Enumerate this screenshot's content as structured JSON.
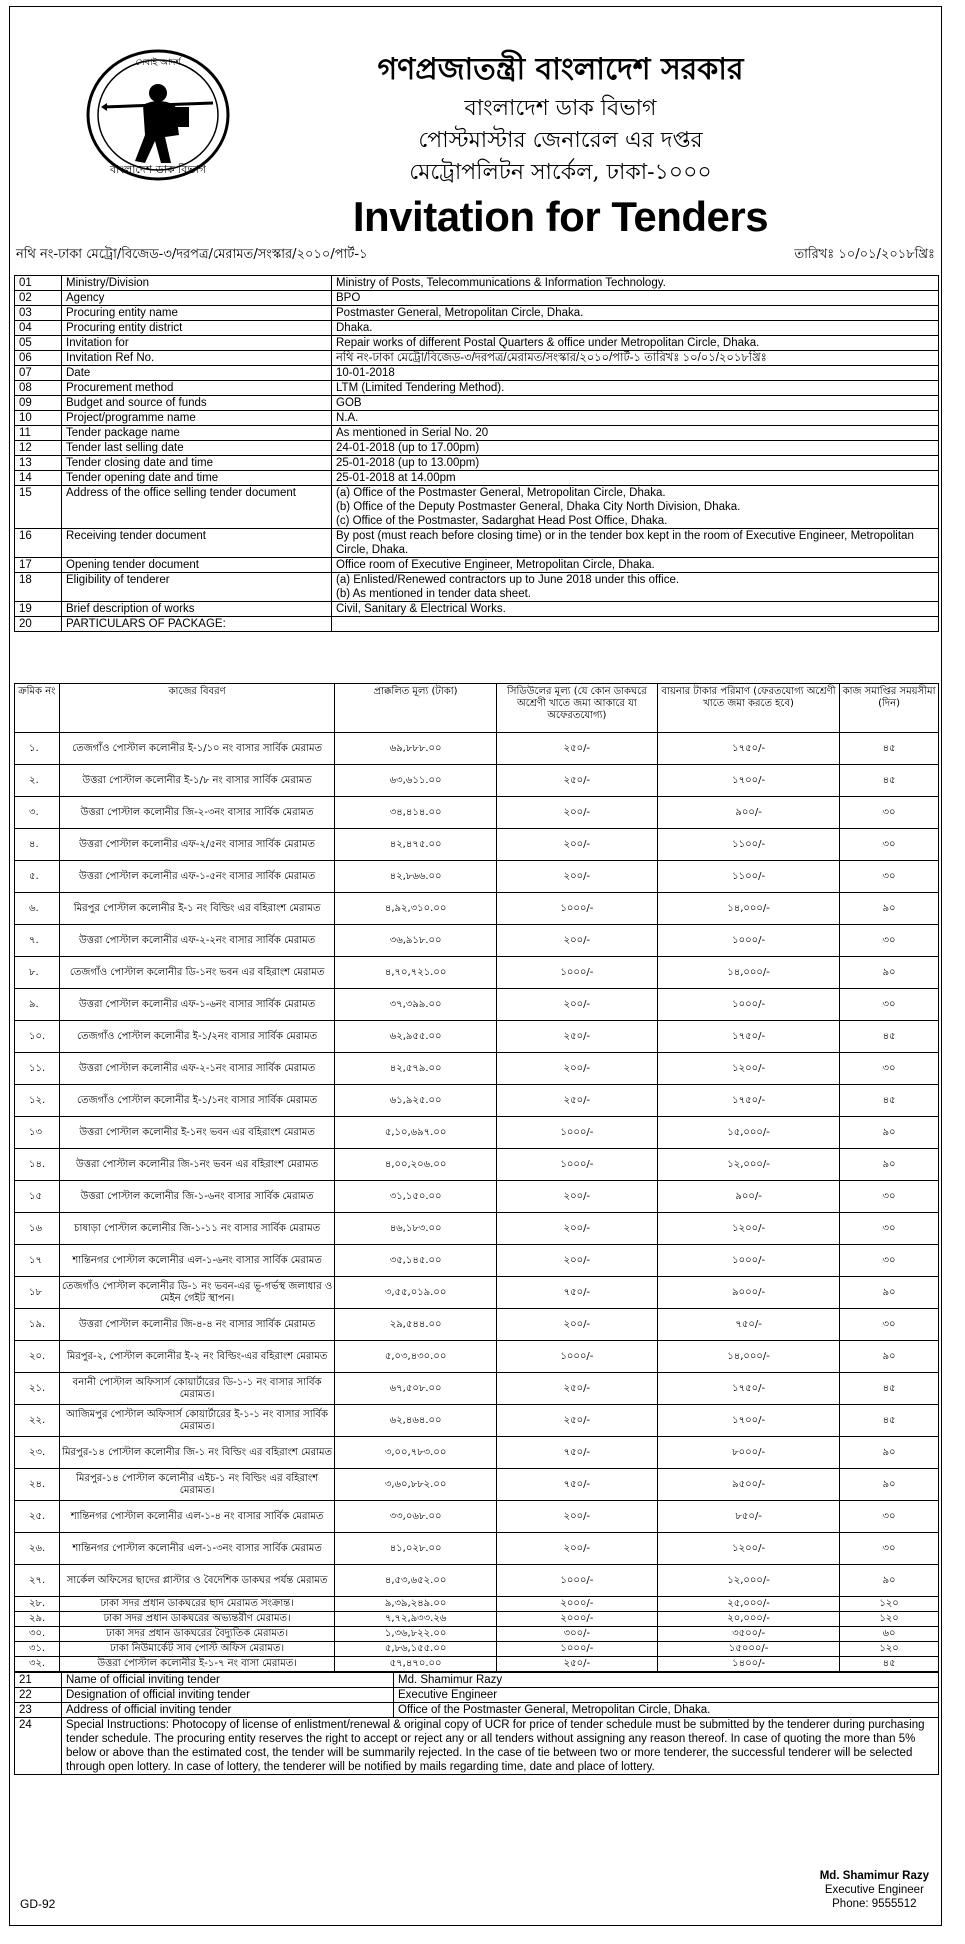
{
  "header": {
    "govt": "গণপ্রজাতন্ত্রী বাংলাদেশ সরকার",
    "dept": "বাংলাদেশ ডাক বিভাগ",
    "office": "পোস্টমাস্টার জেনারেল এর দপ্তর",
    "circle": "মেট্রোপলিটন সার্কেল, ঢাকা-১০০০",
    "title": "Invitation for Tenders",
    "logo_top": "সেবাই আদর্শ",
    "logo_bottom": "বাংলাদেশ ডাক বিভাগ"
  },
  "ref": {
    "memo": "নথি নং-ঢাকা মেট্রো/বিজেড-৩/দরপত্র/মেরামত/সংস্কার/২০১০/পার্ট-১",
    "date": "তারিখঃ ১০/০১/২০১৮খ্রিঃ"
  },
  "info_rows": [
    {
      "no": "01",
      "label": "Ministry/Division",
      "value": "Ministry of Posts, Telecommunications & Information Technology."
    },
    {
      "no": "02",
      "label": "Agency",
      "value": "BPO"
    },
    {
      "no": "03",
      "label": "Procuring entity name",
      "value": "Postmaster General, Metropolitan Circle, Dhaka."
    },
    {
      "no": "04",
      "label": "Procuring entity district",
      "value": "Dhaka."
    },
    {
      "no": "05",
      "label": "Invitation for",
      "value": "Repair works of different Postal Quarters & office under Metropolitan Circle, Dhaka."
    },
    {
      "no": "06",
      "label": "Invitation Ref No.",
      "value": "নথি নং-ঢাকা মেট্রো/বিজেড-৩/দরপত্র/মেরামত/সংস্কার/২০১০/পার্ট-১ তারিখঃ ১০/০১/২০১৮খ্রিঃ"
    },
    {
      "no": "07",
      "label": "Date",
      "value": "10-01-2018"
    },
    {
      "no": "08",
      "label": "Procurement method",
      "value": "LTM (Limited Tendering Method)."
    },
    {
      "no": "09",
      "label": "Budget and source of funds",
      "value": "GOB"
    },
    {
      "no": "10",
      "label": "Project/programme name",
      "value": "N.A."
    },
    {
      "no": "11",
      "label": "Tender package name",
      "value": "As mentioned in Serial No. 20"
    },
    {
      "no": "12",
      "label": "Tender last selling date",
      "value": "24-01-2018 (up to 17.00pm)"
    },
    {
      "no": "13",
      "label": "Tender closing date and time",
      "value": "25-01-2018 (up to 13.00pm)"
    },
    {
      "no": "14",
      "label": "Tender opening date and time",
      "value": "25-01-2018 at 14.00pm"
    },
    {
      "no": "15",
      "label": "Address of the office selling tender document",
      "value": "(a)   Office of the Postmaster General, Metropolitan Circle, Dhaka.",
      "value2": "(b)   Office of the Deputy Postmaster General, Dhaka City North Division, Dhaka.",
      "value3": "(c)   Office of the Postmaster, Sadarghat Head Post Office, Dhaka."
    },
    {
      "no": "16",
      "label": "Receiving tender document",
      "value": "By post (must reach before closing time) or in the tender box kept in the room of Executive Engineer, Metropolitan Circle, Dhaka."
    },
    {
      "no": "17",
      "label": "Opening tender document",
      "value": "Office room of Executive Engineer, Metropolitan Circle, Dhaka."
    },
    {
      "no": "18",
      "label": "Eligibility of tenderer",
      "value": "(a) Enlisted/Renewed contractors up to June 2018 under this office.",
      "value2": "(b) As mentioned in tender data sheet."
    },
    {
      "no": "19",
      "label": "Brief description of works",
      "value": "Civil, Sanitary & Electrical Works."
    },
    {
      "no": "20",
      "label": "PARTICULARS OF PACKAGE:",
      "value": ""
    }
  ],
  "pkg_headers": [
    "ক্রমিক নং",
    "কাজের বিবরণ",
    "প্রাক্কলিত মূল্য (টাকা)",
    "সিডিউলের মূল্য (যে কোন ডাকঘরে অশ্রেণী খাতে জমা আকারে যা অফেরতযোগ্য)",
    "বায়নার টাকার পরিমাণ (ফেরতযোগ্য অশ্রেণী খাতে জমা করতে হবে)",
    "কাজ সমাপ্তির সময়সীমা (দিন)"
  ],
  "pkg_rows": [
    [
      "১.",
      "তেজগাঁও পোস্টাল কলোনীর ই-১/১০ নং বাসার সার্বিক মেরামত",
      "৬৯,৮৮৮.০০",
      "২৫০/-",
      "১৭৫০/-",
      "৪৫"
    ],
    [
      "২.",
      "উত্তরা পোস্টাল কলোনীর ই-১/৮ নং বাসার সার্বিক মেরামত",
      "৬৩,৬১১.০০",
      "২৫০/-",
      "১৭০০/-",
      "৪৫"
    ],
    [
      "৩.",
      "উত্তরা পোস্টাল কলোনীর জি-২-৩নং বাসার সার্বিক মেরামত",
      "৩৪,৪১৪.০০",
      "২০০/-",
      "৯০০/-",
      "৩০"
    ],
    [
      "৪.",
      "উত্তরা পোস্টাল কলোনীর এফ-২/৫নং বাসার সার্বিক মেরামত",
      "৪২,৪৭৫.০০",
      "২০০/-",
      "১১০০/-",
      "৩০"
    ],
    [
      "৫.",
      "উত্তরা পোস্টাল কলোনীর এফ-১-৫নং বাসার সার্বিক মেরামত",
      "৪২,৮৬৬.০০",
      "২০০/-",
      "১১০০/-",
      "৩০"
    ],
    [
      "৬.",
      "মিরপুর পোস্টাল কলোনীর ই-১ নং বিল্ডিং এর বহিরাংশ মেরামত",
      "৪,৯২,৩১০.০০",
      "১০০০/-",
      "১৪,০০০/-",
      "৯০"
    ],
    [
      "৭.",
      "উত্তরা পোস্টাল কলোনীর এফ-২-২নং বাসার সার্বিক মেরামত",
      "৩৬,৯১৮.০০",
      "২০০/-",
      "১০০০/-",
      "৩০"
    ],
    [
      "৮.",
      "তেজগাঁও পোস্টাল কলোনীর ডি-১নং ভবন এর বহিরাংশ মেরামত",
      "৪,৭০,৭২১.০০",
      "১০০০/-",
      "১৪,০০০/-",
      "৯০"
    ],
    [
      "৯.",
      "উত্তরা পোস্টাল কলোনীর এফ-১-৬নং বাসার সার্বিক মেরামত",
      "৩৭,৩৯৯.০০",
      "২০০/-",
      "১০০০/-",
      "৩০"
    ],
    [
      "১০.",
      "তেজগাঁও পোস্টাল কলোনীর ই-১/২নং বাসার সার্বিক মেরামত",
      "৬২,৯৫৫.০০",
      "২৫০/-",
      "১৭৫০/-",
      "৪৫"
    ],
    [
      "১১.",
      "উত্তরা পোস্টাল কলোনীর এফ-২-১নং বাসার সার্বিক মেরামত",
      "৪২,৫৭৯.০০",
      "২০০/-",
      "১২০০/-",
      "৩০"
    ],
    [
      "১২.",
      "তেজগাঁও পোস্টাল কলোনীর ই-১/১নং বাসার সার্বিক মেরামত",
      "৬১,৯২৫.০০",
      "২৫০/-",
      "১৭৫০/-",
      "৪৫"
    ],
    [
      "১৩",
      "উত্তরা পোস্টাল কলোনীর ই-১নং ভবন এর বহিরাংশ মেরামত",
      "৫,১০,৬৯৭.০০",
      "১০০০/-",
      "১৫,০০০/-",
      "৯০"
    ],
    [
      "১৪.",
      "উত্তরা পোস্টাল কলোনীর জি-১নং ভবন এর বহিরাংশ মেরামত",
      "৪,০০,২০৬.০০",
      "১০০০/-",
      "১২,০০০/-",
      "৯০"
    ],
    [
      "১৫",
      "উত্তরা পোস্টাল কলোনীর জি-১-৬নং বাসার সার্বিক মেরামত",
      "৩১,১৫০.০০",
      "২০০/-",
      "৯০০/-",
      "৩০"
    ],
    [
      "১৬",
      "চাষাড়া পোস্টাল কলোনীর জি-১-১১ নং বাসার সার্বিক মেরামত",
      "৪৬,১৮৩.০০",
      "২০০/-",
      "১২০০/-",
      "৩০"
    ],
    [
      "১৭",
      "শান্তিনগর পোস্টাল কলোনীর এল-১-৬নং বাসার সার্বিক মেরামত",
      "৩৫,১৪৫.০০",
      "২০০/-",
      "১০০০/-",
      "৩০"
    ],
    [
      "১৮",
      "তেজগাঁও পোস্টাল কলোনীর ডি-১ নং ভবন-এর ভূ-গর্ভস্থ জলাধার ও মেইন গেইট স্থাপন।",
      "৩,৫৫,০১৯.০০",
      "৭৫০/-",
      "৯০০০/-",
      "৯০"
    ],
    [
      "১৯.",
      "উত্তরা পোস্টাল কলোনীর জি-৪-৪ নং বাসার সার্বিক মেরামত",
      "২৯,৫৪৪.০০",
      "২০০/-",
      "৭৫০/-",
      "৩০"
    ],
    [
      "২০.",
      "মিরপুর-২, পোস্টাল কলোনীর ই-২ নং বিল্ডিং-এর বহিরাংশ মেরামত",
      "৫,০৩,৪৩০.০০",
      "১০০০/-",
      "১৪,০০০/-",
      "৯০"
    ],
    [
      "২১.",
      "বনানী পোস্টাল অফিসার্স কোয়ার্টারের ডি-১-১ নং বাসার সার্বিক মেরামত।",
      "৬৭,৫০৮.০০",
      "২৫০/-",
      "১৭৫০/-",
      "৪৫"
    ],
    [
      "২২.",
      "আজিমপুর পোস্টাল অফিসার্স কোয়ার্টারের ই-১-১ নং বাসার সার্বিক মেরামত।",
      "৬২,৪৬৪.০০",
      "২৫০/-",
      "১৭০০/-",
      "৪৫"
    ],
    [
      "২৩.",
      "মিরপুর-১৪ পোস্টাল কলোনীর জি-১ নং বিল্ডিং এর বহিরাংশ মেরামত",
      "৩,০০,৭৮৩.০০",
      "৭৫০/-",
      "৮০০০/-",
      "৯০"
    ],
    [
      "২৪.",
      "মিরপুর-১৪ পোস্টাল কলোনীর এইচ-১ নং বিল্ডিং এর বহিরাংশ মেরামত।",
      "৩,৬০,৮৮২.০০",
      "৭৫০/-",
      "৯৫০০/-",
      "৯০"
    ],
    [
      "২৫.",
      "শান্তিনগর পোস্টাল কলোনীর এল-১-৪ নং বাসার সার্বিক মেরামত",
      "৩৩,০৬৮.০০",
      "২০০/-",
      "৮৫০/-",
      "৩০"
    ],
    [
      "২৬.",
      "শান্তিনগর পোস্টাল কলোনীর এল-১-৩নং বাসার সার্বিক মেরামত",
      "৪১,০২৮.০০",
      "২০০/-",
      "১২০০/-",
      "৩০"
    ],
    [
      "২৭.",
      "সার্কেল অফিসের ছাদের প্লাস্টার ও বৈদেশিক ডাকঘর পর্যন্ত মেরামত",
      "৪,৫৩,৬৫২.০০",
      "১০০০/-",
      "১২,০০০/-",
      "৯০"
    ]
  ],
  "pkg_rows_short": [
    [
      "২৮.",
      "ঢাকা সদর প্রধান ডাকঘরের ছাদ মেরামত সংক্রান্ত।",
      "৯,৩৯,২৪৯.০০",
      "২০০০/-",
      "২৫,০০০/-",
      "১২০"
    ],
    [
      "২৯.",
      "ঢাকা সদর প্রধান ডাকঘরের অভ্যন্তরীণ মেরামত।",
      "৭,৭২,৯৩৩.২৬",
      "২০০০/-",
      "২০,০০০/-",
      "১২০"
    ],
    [
      "৩০.",
      "ঢাকা সদর প্রধান ডাকঘরের বৈদ্যুতিক মেরামত।",
      "১,৩৬,৮২২.০০",
      "৩০০/-",
      "৩৫০০/-",
      "৬০"
    ],
    [
      "৩১.",
      "ঢাকা নিউমার্কেট সাব পোস্ট অফিস মেরামত।",
      "৫,৮৬,১৫৫.০০",
      "১০০০/-",
      "১৫০০০/-",
      "১২০"
    ],
    [
      "৩২.",
      "উত্তরা পোস্টাল কলোনীর ই-১-৭ নং বাসা মেরামত।",
      "৫৭,৪৭০.০০",
      "২৫০/-",
      "১৪০০/-",
      "৪৫"
    ]
  ],
  "foot_rows": [
    {
      "no": "21",
      "label": "Name of official inviting tender",
      "value": "Md. Shamimur Razy"
    },
    {
      "no": "22",
      "label": "Designation of official inviting tender",
      "value": "Executive Engineer"
    },
    {
      "no": "23",
      "label": "Address of official inviting tender",
      "value": "Office of the Postmaster General, Metropolitan Circle, Dhaka."
    }
  ],
  "special": {
    "no": "24",
    "text": "Special Instructions: Photocopy of license of enlistment/renewal & original copy of UCR for price of tender schedule must be submitted by the tenderer during purchasing tender schedule. The procuring entity reserves the right to accept or reject any or all tenders without assigning any reason thereof. In case of quoting the more than 5% below or above than the estimated cost, the tender will be summarily rejected. In the case of tie between two or more tenderer, the successful tenderer will be selected through open lottery. In case of lottery, the tenderer will be notified by mails regarding time, date and place of lottery."
  },
  "signature": {
    "name": "Md. Shamimur Razy",
    "designation": "Executive Engineer",
    "phone": "Phone: 9555512"
  },
  "code": "GD-92"
}
